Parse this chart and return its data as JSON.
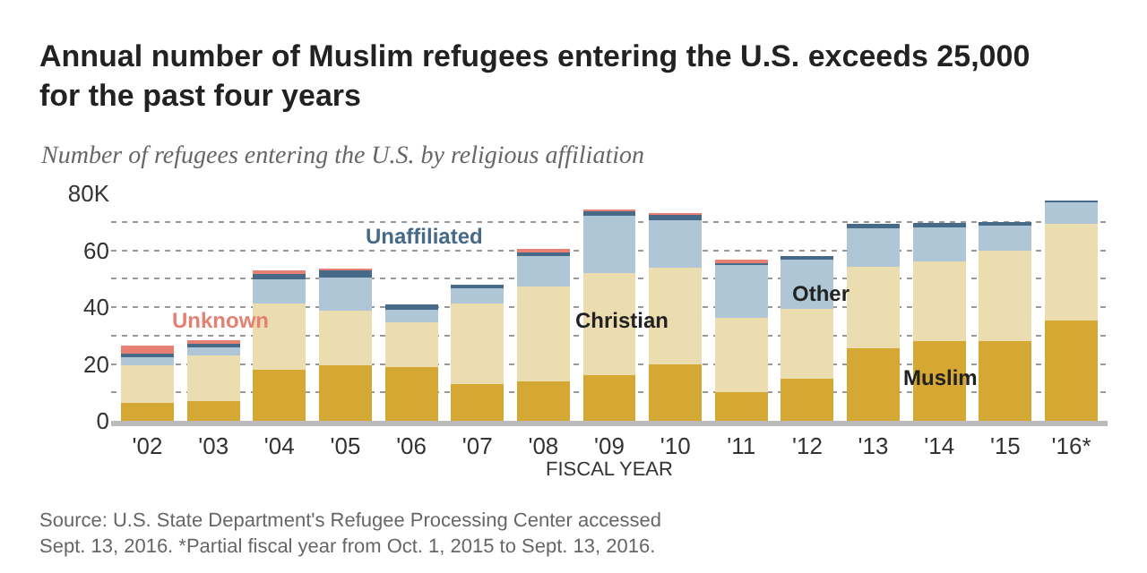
{
  "chart_data": {
    "type": "bar",
    "stacked": true,
    "title": "Annual number of Muslim refugees entering the U.S. exceeds 25,000\nfor the past four years",
    "subtitle": "Number of refugees entering the U.S. by religious affiliation",
    "xlabel": "FISCAL YEAR",
    "categories": [
      "'02",
      "'03",
      "'04",
      "'05",
      "'06",
      "'07",
      "'08",
      "'09",
      "'10",
      "'11",
      "'12",
      "'13",
      "'14",
      "'15",
      "'16*"
    ],
    "series": [
      {
        "name": "Muslim",
        "color": "#d4a833",
        "values": [
          6.2,
          6.8,
          17.9,
          19.6,
          19.0,
          13.0,
          14.0,
          16.2,
          19.7,
          10.2,
          14.7,
          25.5,
          28.0,
          28.0,
          35.2
        ]
      },
      {
        "name": "Christian",
        "color": "#ecddb0",
        "values": [
          13.4,
          16.3,
          23.3,
          19.0,
          15.8,
          28.4,
          33.2,
          35.8,
          34.2,
          26.1,
          24.7,
          28.8,
          28.2,
          31.7,
          34.0
        ]
      },
      {
        "name": "Other",
        "color": "#aec6d6",
        "values": [
          2.7,
          2.7,
          8.7,
          11.9,
          4.4,
          5.2,
          10.7,
          20.1,
          16.8,
          18.6,
          17.4,
          13.5,
          11.8,
          9.3,
          7.7
        ]
      },
      {
        "name": "Unaffiliated",
        "color": "#466a87",
        "values": [
          1.4,
          1.4,
          2.1,
          2.7,
          1.8,
          1.4,
          1.7,
          1.7,
          1.8,
          0.9,
          0.8,
          1.4,
          1.6,
          0.4,
          0.4
        ]
      },
      {
        "name": "Unknown",
        "color": "#e58072",
        "values": [
          2.7,
          1.0,
          0.6,
          0.2,
          0,
          0,
          0.4,
          0.4,
          0.5,
          0.4,
          0,
          0,
          0,
          0,
          0
        ]
      }
    ],
    "ylim": [
      0,
      80
    ],
    "yticks": [
      0,
      {
        "value": 10,
        "label": null
      },
      20,
      {
        "value": 30,
        "label": null
      },
      40,
      {
        "value": 50,
        "label": null
      },
      60,
      {
        "value": 70,
        "label": null
      },
      {
        "value": 80,
        "label": "80K"
      }
    ],
    "grid": "y",
    "legend": false,
    "annotations": [
      "Source: U.S. State Department's Refugee Processing Center accessed\nSept. 13, 2016. *Partial fiscal year from Oct. 1, 2015 to Sept. 13, 2016."
    ]
  }
}
